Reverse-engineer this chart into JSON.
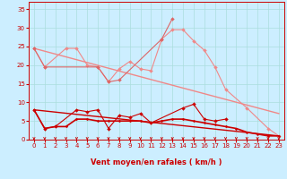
{
  "bg_color": "#cceeff",
  "grid_color": "#aadddd",
  "xlabel": "Vent moyen/en rafales ( km/h )",
  "xlim": [
    -0.5,
    23.5
  ],
  "ylim": [
    0,
    37
  ],
  "yticks": [
    0,
    5,
    10,
    15,
    20,
    25,
    30,
    35
  ],
  "xticks": [
    0,
    1,
    2,
    3,
    4,
    5,
    6,
    7,
    8,
    9,
    10,
    11,
    12,
    13,
    14,
    15,
    16,
    17,
    18,
    19,
    20,
    21,
    22,
    23
  ],
  "lines": [
    {
      "x": [
        0,
        1,
        3,
        4,
        5,
        6,
        7,
        8,
        9,
        10,
        11,
        12,
        13,
        14,
        15,
        16,
        17,
        18,
        20,
        22,
        23
      ],
      "y": [
        24.5,
        19.5,
        24.5,
        24.5,
        20.0,
        19.5,
        15.5,
        19.0,
        21.0,
        19.0,
        18.5,
        27.0,
        29.5,
        29.5,
        26.5,
        24.0,
        19.5,
        13.5,
        8.5,
        3.0,
        1.0
      ],
      "color": "#f08888",
      "lw": 0.8,
      "marker": "D",
      "ms": 2.0
    },
    {
      "x": [
        0,
        1,
        6,
        7,
        8,
        12,
        13
      ],
      "y": [
        24.5,
        19.5,
        19.5,
        15.5,
        16.0,
        27.0,
        32.5
      ],
      "color": "#dd6666",
      "lw": 0.8,
      "marker": "D",
      "ms": 2.0
    },
    {
      "x": [
        0,
        1,
        2,
        4,
        5,
        6,
        7,
        8,
        9,
        10,
        11,
        14,
        15,
        16,
        17,
        18
      ],
      "y": [
        8.0,
        3.0,
        3.5,
        8.0,
        7.5,
        8.0,
        3.0,
        6.5,
        6.0,
        7.0,
        4.5,
        8.5,
        9.5,
        5.5,
        5.0,
        5.5
      ],
      "color": "#cc0000",
      "lw": 0.8,
      "marker": "D",
      "ms": 2.0
    },
    {
      "x": [
        0,
        1,
        2,
        3,
        4,
        5,
        6,
        7,
        8,
        9,
        10,
        11,
        12,
        13,
        14,
        15,
        16,
        17,
        18,
        19,
        20,
        21,
        22,
        23
      ],
      "y": [
        8.0,
        3.0,
        3.5,
        3.5,
        5.5,
        5.5,
        5.0,
        5.0,
        5.0,
        5.0,
        5.0,
        4.5,
        5.0,
        5.5,
        5.5,
        5.0,
        4.5,
        4.0,
        3.5,
        3.0,
        2.0,
        1.5,
        1.0,
        1.0
      ],
      "color": "#cc0000",
      "lw": 1.2,
      "marker": "D",
      "ms": 1.5
    },
    {
      "x": [
        0,
        23
      ],
      "y": [
        24.5,
        7.0
      ],
      "color": "#f08888",
      "lw": 1.0,
      "marker": null,
      "ms": 0,
      "linestyle": "-"
    },
    {
      "x": [
        0,
        23
      ],
      "y": [
        8.0,
        1.0
      ],
      "color": "#cc0000",
      "lw": 1.0,
      "marker": null,
      "ms": 0,
      "linestyle": "-"
    }
  ],
  "arrow_color": "#cc0000",
  "tick_color": "#cc0000",
  "tick_labelsize": 5,
  "xlabel_fontsize": 6
}
